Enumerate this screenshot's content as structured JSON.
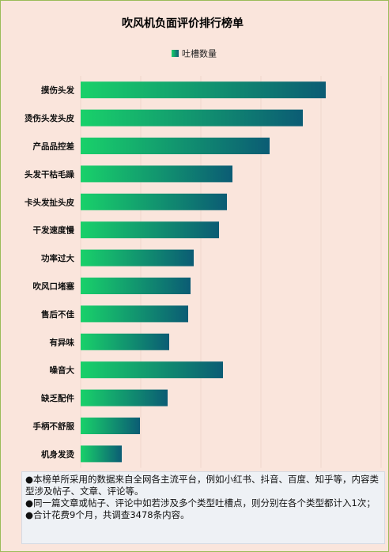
{
  "chart_data": {
    "type": "bar",
    "orientation": "horizontal",
    "title": "吹风机负面评价排行榜单",
    "legend": {
      "entries": [
        "吐槽数量"
      ],
      "position": "top"
    },
    "categories": [
      "摸伤头发",
      "烫伤头发头皮",
      "产品品控差",
      "头发干枯毛躁",
      "卡头发扯头皮",
      "干发速度慢",
      "功率过大",
      "吹风口堵塞",
      "售后不佳",
      "有异味",
      "噪音大",
      "缺乏配件",
      "手柄不舒服",
      "机身发烫"
    ],
    "series": [
      {
        "name": "吐槽数量",
        "values": [
          310,
          281,
          239,
          192,
          185,
          175,
          143,
          139,
          136,
          112,
          180,
          110,
          75,
          52
        ]
      }
    ],
    "xlim": [
      0,
      380
    ],
    "grid": "vertical",
    "colors": {
      "bar_start": "#19d16a",
      "bar_end": "#0b5c74"
    }
  },
  "notes": [
    "●本榜单所采用的数据来自全网各主流平台，例如小红书、抖音、百度、知乎等，内容类型涉及帖子、文章、评论等。",
    "●同一篇文章或帖子、评论中如若涉及多个类型吐槽点，则分别在各个类型都计入1次；",
    "●合计花费9个月，共调查3478条内容。"
  ]
}
